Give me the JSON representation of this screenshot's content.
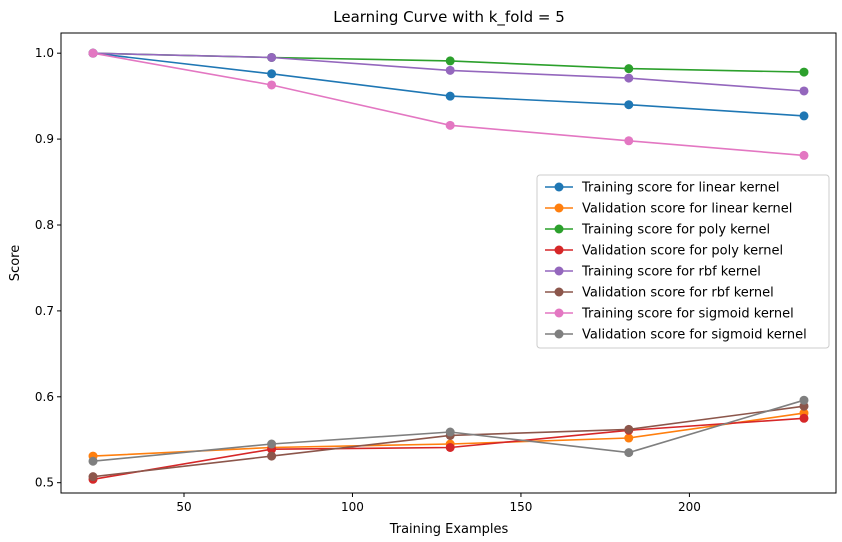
{
  "chart_data": {
    "type": "line",
    "title": "Learning Curve with k_fold = 5",
    "xlabel": "Training Examples",
    "ylabel": "Score",
    "xlim": [
      13.5,
      243.5
    ],
    "ylim": [
      0.488,
      1.0235
    ],
    "xticks": [
      50,
      100,
      150,
      200
    ],
    "yticks": [
      0.5,
      0.6,
      0.7,
      0.8,
      0.9,
      1.0
    ],
    "ytick_labels": [
      "0.5",
      "0.6",
      "0.7",
      "0.8",
      "0.9",
      "1.0"
    ],
    "grid": false,
    "legend_position": "center-right",
    "x": [
      23,
      76,
      129,
      182,
      234
    ],
    "series": [
      {
        "name": "Training score for linear kernel",
        "color": "#1f77b4",
        "values": [
          1.0,
          0.976,
          0.95,
          0.94,
          0.927
        ]
      },
      {
        "name": "Validation score for linear kernel",
        "color": "#ff7f0e",
        "values": [
          0.531,
          0.541,
          0.545,
          0.552,
          0.581
        ]
      },
      {
        "name": "Training score for poly kernel",
        "color": "#2ca02c",
        "values": [
          1.0,
          0.995,
          0.991,
          0.982,
          0.978
        ]
      },
      {
        "name": "Validation score for poly kernel",
        "color": "#d62728",
        "values": [
          0.504,
          0.539,
          0.541,
          0.561,
          0.575
        ]
      },
      {
        "name": "Training score for rbf kernel",
        "color": "#9467bd",
        "values": [
          1.0,
          0.995,
          0.98,
          0.971,
          0.956
        ]
      },
      {
        "name": "Validation score for rbf kernel",
        "color": "#8c564b",
        "values": [
          0.507,
          0.531,
          0.555,
          0.562,
          0.589
        ]
      },
      {
        "name": "Training score for sigmoid kernel",
        "color": "#e377c2",
        "values": [
          1.0,
          0.963,
          0.916,
          0.898,
          0.881
        ]
      },
      {
        "name": "Validation score for sigmoid kernel",
        "color": "#7f7f7f",
        "values": [
          0.525,
          0.545,
          0.559,
          0.535,
          0.596
        ]
      }
    ]
  }
}
